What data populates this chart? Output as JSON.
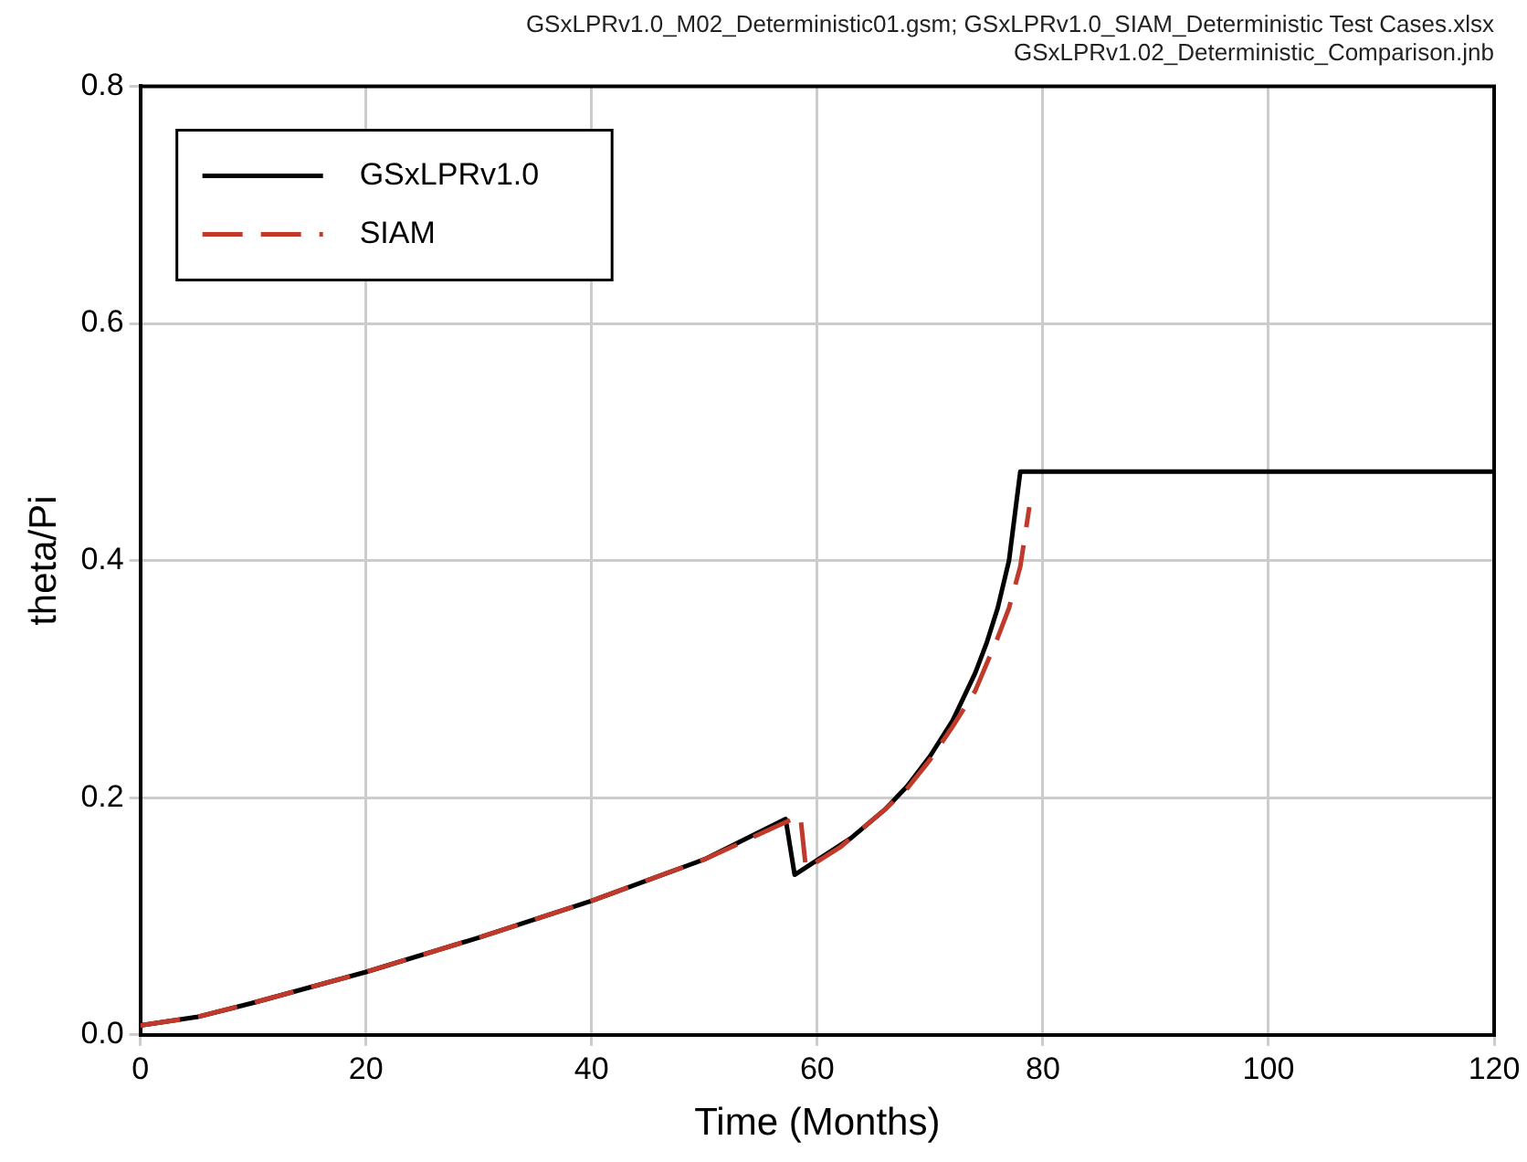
{
  "chart_data": {
    "type": "line",
    "title": "GSxLPRv1.0_M02_Deterministic01.gsm; GSxLPRv1.0_SIAM_Deterministic Test Cases.xlsx",
    "subtitle": "GSxLPRv1.02_Deterministic_Comparison.jnb",
    "xlabel": "Time (Months)",
    "ylabel": "theta/Pi",
    "xlim": [
      0,
      120
    ],
    "xticks": [
      0,
      20,
      40,
      60,
      80,
      100,
      120
    ],
    "ylim": [
      0,
      0.8
    ],
    "yticks": [
      {
        "value": 0,
        "label": "0.0"
      },
      {
        "value": 0.2,
        "label": "0.2"
      },
      {
        "value": 0.4,
        "label": "0.4"
      },
      {
        "value": 0.6,
        "label": "0.6"
      },
      {
        "value": 0.8,
        "label": "0.8"
      }
    ],
    "grid": true,
    "legend": "top left",
    "marker": "none",
    "series": [
      {
        "name": "GSxLPRv1.0",
        "color": "#000000",
        "line_style": "solid",
        "x": [
          0,
          5,
          10,
          20,
          30,
          40,
          50,
          57.2,
          58,
          63,
          66,
          68,
          70,
          72,
          74,
          75,
          76,
          77,
          78,
          120
        ],
        "values": [
          0.008,
          0.015,
          0.027,
          0.053,
          0.082,
          0.113,
          0.148,
          0.182,
          0.135,
          0.166,
          0.19,
          0.21,
          0.235,
          0.265,
          0.305,
          0.33,
          0.36,
          0.4,
          0.475,
          0.475
        ]
      },
      {
        "name": "SIAM",
        "color": "#c0392b",
        "line_style": "dashed",
        "x": [
          0,
          5,
          10,
          20,
          30,
          40,
          50,
          58.5,
          59,
          62,
          66,
          68,
          70,
          72,
          74,
          76,
          77,
          78,
          78.8
        ],
        "values": [
          0.008,
          0.015,
          0.027,
          0.053,
          0.082,
          0.113,
          0.148,
          0.185,
          0.14,
          0.158,
          0.19,
          0.208,
          0.232,
          0.26,
          0.29,
          0.335,
          0.36,
          0.395,
          0.445
        ]
      }
    ]
  }
}
